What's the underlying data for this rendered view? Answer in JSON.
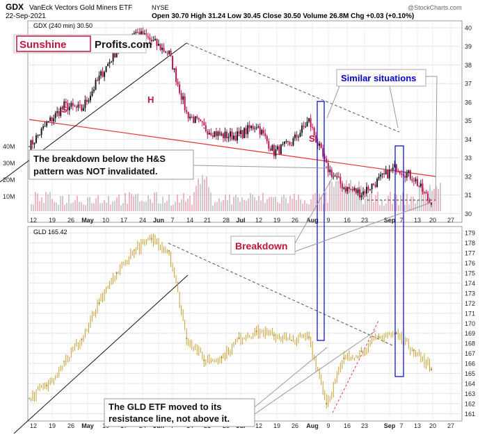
{
  "header": {
    "symbol": "GDX",
    "name": "VanEck Vectors Gold Miners ETF",
    "exchange": "NYSE",
    "date": "22-Sep-2021",
    "ohlc": "Open 30.70  High 31.24  Low 30.45  Close 30.50  Volume 26.8M  Chg +0.03 (+0.10%)",
    "watermark": "@StockCharts.com"
  },
  "logo": {
    "part1": "Sunshine",
    "part2": "Profits.com"
  },
  "annotations": {
    "similar": "Similar situations",
    "breakdown_box_line1": "The breakdown below the H&S",
    "breakdown_box_line2": "pattern was NOT invalidated.",
    "breakdown": "Breakdown",
    "gld_box_line1": "The GLD ETF moved to its",
    "gld_box_line2": "resistance line, not above it.",
    "label_s1": "S",
    "label_h": "H",
    "label_s2": "S"
  },
  "colors": {
    "up": "#1a1a1a",
    "down": "#c0145a",
    "gld": "#c8a030",
    "volume": "#e8a0b0",
    "trend_red": "#e83030",
    "box_blue": "#0000cc",
    "annotation_red": "#c0143c",
    "annotation_blue": "#0000cc"
  },
  "chart_data": [
    {
      "type": "line",
      "panel": "top",
      "legend": "GDX (240 min) 30.50",
      "y_ticks": [
        30,
        31,
        32,
        33,
        34,
        35,
        36,
        37,
        38,
        39,
        40
      ],
      "ylim": [
        29.6,
        40.3
      ],
      "volume_ticks": [
        "10M",
        "20M",
        "30M",
        "40M"
      ],
      "x_ticks": [
        "12",
        "19",
        "26",
        "May",
        "10",
        "17",
        "24",
        "Jun",
        "7",
        "14",
        "21",
        "28",
        "Jul",
        "12",
        "19",
        "26",
        "Aug",
        "9",
        "16",
        "23",
        "Sep",
        "7",
        "13",
        "20",
        "27"
      ],
      "x": [
        "Apr 12",
        "Apr 19",
        "Apr 26",
        "May 3",
        "May 10",
        "May 17",
        "May 24",
        "Jun 1",
        "Jun 7",
        "Jun 14",
        "Jun 21",
        "Jun 28",
        "Jul 6",
        "Jul 12",
        "Jul 19",
        "Jul 26",
        "Aug 2",
        "Aug 9",
        "Aug 16",
        "Aug 23",
        "Aug 30",
        "Sep 7",
        "Sep 13",
        "Sep 20"
      ],
      "values": [
        33.6,
        34.8,
        35.8,
        35.6,
        37.3,
        38.8,
        39.8,
        39.3,
        38.6,
        35.4,
        34.6,
        34.2,
        34.2,
        34.8,
        33.3,
        33.8,
        35.0,
        32.5,
        31.4,
        31.1,
        31.8,
        32.5,
        31.9,
        30.5
      ],
      "annotations": [
        {
          "text": "S"
        },
        {
          "text": "H"
        },
        {
          "text": "S"
        }
      ]
    },
    {
      "type": "line",
      "panel": "bottom",
      "legend": "GLD 165.42",
      "y_ticks": [
        161,
        162,
        163,
        164,
        165,
        166,
        167,
        168,
        169,
        170,
        171,
        172,
        173,
        174,
        175,
        176,
        177,
        178,
        179
      ],
      "ylim": [
        160.4,
        179.5
      ],
      "x_ticks": [
        "12",
        "19",
        "26",
        "May",
        "10",
        "17",
        "24",
        "Jun",
        "7",
        "14",
        "21",
        "28",
        "Jul",
        "12",
        "19",
        "26",
        "Aug",
        "9",
        "16",
        "23",
        "Sep",
        "7",
        "13",
        "20",
        "27"
      ],
      "x": [
        "Apr 12",
        "Apr 19",
        "Apr 26",
        "May 3",
        "May 10",
        "May 17",
        "May 24",
        "Jun 1",
        "Jun 7",
        "Jun 14",
        "Jun 21",
        "Jun 28",
        "Jul 6",
        "Jul 12",
        "Jul 19",
        "Jul 26",
        "Aug 2",
        "Aug 9",
        "Aug 16",
        "Aug 23",
        "Aug 30",
        "Sep 7",
        "Sep 13",
        "Sep 20"
      ],
      "values": [
        162.5,
        163.8,
        166.2,
        168.4,
        172.0,
        175.0,
        177.3,
        178.4,
        177.2,
        168.5,
        166.3,
        166.6,
        168.5,
        169.2,
        168.8,
        168.3,
        168.6,
        162.0,
        166.5,
        167.2,
        168.6,
        169.0,
        167.3,
        165.4
      ]
    }
  ]
}
